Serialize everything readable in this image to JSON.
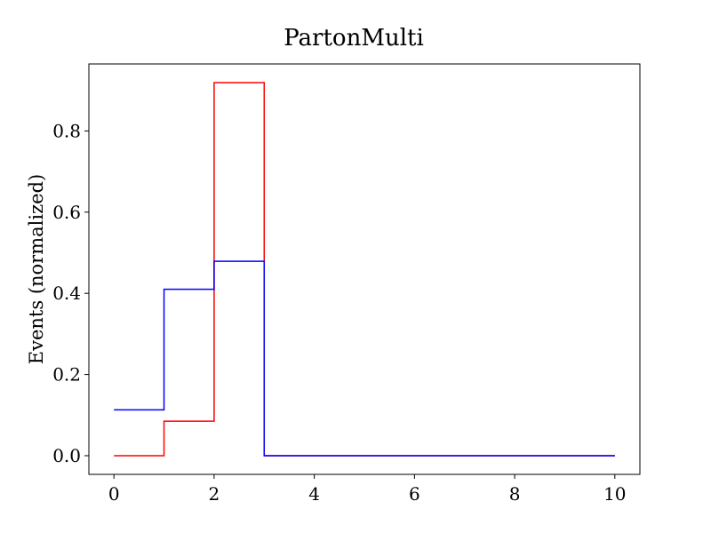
{
  "chart_data": {
    "type": "line",
    "step": "post",
    "title": "PartonMulti",
    "xlabel": "",
    "ylabel": "Events (normalized)",
    "xlim": [
      -0.5,
      10.5
    ],
    "ylim": [
      -0.046,
      0.965
    ],
    "x_ticks": [
      0,
      2,
      4,
      6,
      8,
      10
    ],
    "y_ticks": [
      0.0,
      0.2,
      0.4,
      0.6,
      0.8
    ],
    "x_tick_labels": [
      "0",
      "2",
      "4",
      "6",
      "8",
      "10"
    ],
    "y_tick_labels": [
      "0.0",
      "0.2",
      "0.4",
      "0.6",
      "0.8"
    ],
    "grid": false,
    "legend": "none",
    "x": [
      0,
      1,
      2,
      3,
      4,
      5,
      6,
      7,
      8,
      9,
      10
    ],
    "series": [
      {
        "color": "#ff0000",
        "values": [
          0.0,
          0.085,
          0.919,
          0.0,
          0.0,
          0.0,
          0.0,
          0.0,
          0.0,
          0.0,
          0.0
        ]
      },
      {
        "color": "#0000ff",
        "values": [
          0.113,
          0.41,
          0.479,
          0.0,
          0.0,
          0.0,
          0.0,
          0.0,
          0.0,
          0.0,
          0.0
        ]
      }
    ]
  }
}
